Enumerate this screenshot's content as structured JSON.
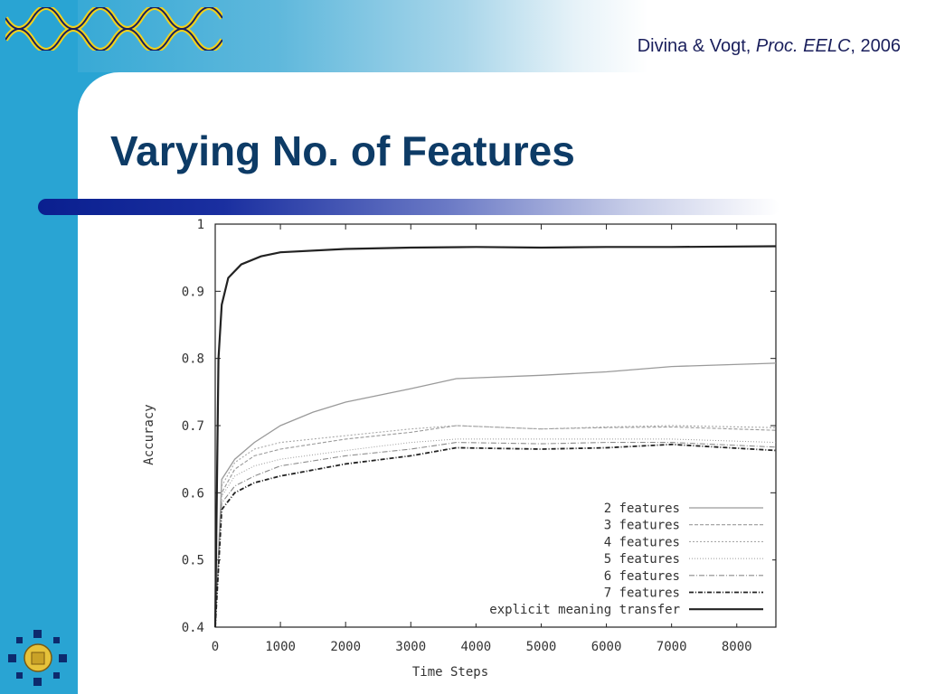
{
  "header": {
    "citation_authors": "Divina & Vogt, ",
    "citation_venue": "Proc. EELC",
    "citation_year": ", 2006"
  },
  "slide": {
    "title": "Varying No. of Features"
  },
  "colors": {
    "accent_blue": "#29a4d3",
    "title_navy": "#0d3b66",
    "rule_blue": "#0a1f8f"
  },
  "chart_data": {
    "type": "line",
    "xlabel": "Time Steps",
    "ylabel": "Accuracy",
    "xlim": [
      0,
      8600
    ],
    "ylim": [
      0.4,
      1.0
    ],
    "xticks": [
      0,
      1000,
      2000,
      3000,
      4000,
      5000,
      6000,
      7000,
      8000
    ],
    "yticks": [
      0.4,
      0.5,
      0.6,
      0.7,
      0.8,
      0.9,
      1
    ],
    "legend_position": "bottom-right",
    "series": [
      {
        "name": "2 features",
        "style": "solid-light",
        "points": [
          [
            0,
            0.4
          ],
          [
            100,
            0.62
          ],
          [
            300,
            0.65
          ],
          [
            600,
            0.675
          ],
          [
            1000,
            0.7
          ],
          [
            1500,
            0.72
          ],
          [
            2000,
            0.735
          ],
          [
            3000,
            0.755
          ],
          [
            3700,
            0.77
          ],
          [
            5000,
            0.775
          ],
          [
            6000,
            0.78
          ],
          [
            7000,
            0.788
          ],
          [
            8600,
            0.793
          ]
        ]
      },
      {
        "name": "3 features",
        "style": "dashed",
        "points": [
          [
            0,
            0.4
          ],
          [
            100,
            0.6
          ],
          [
            300,
            0.635
          ],
          [
            600,
            0.655
          ],
          [
            1000,
            0.665
          ],
          [
            2000,
            0.68
          ],
          [
            3000,
            0.69
          ],
          [
            3700,
            0.7
          ],
          [
            5000,
            0.695
          ],
          [
            6000,
            0.697
          ],
          [
            7000,
            0.698
          ],
          [
            8600,
            0.693
          ]
        ]
      },
      {
        "name": "4 features",
        "style": "dotted",
        "points": [
          [
            0,
            0.4
          ],
          [
            100,
            0.61
          ],
          [
            300,
            0.645
          ],
          [
            600,
            0.665
          ],
          [
            1000,
            0.675
          ],
          [
            2000,
            0.685
          ],
          [
            3000,
            0.695
          ],
          [
            3700,
            0.7
          ],
          [
            5000,
            0.695
          ],
          [
            6000,
            0.698
          ],
          [
            7000,
            0.7
          ],
          [
            8600,
            0.697
          ]
        ]
      },
      {
        "name": "5 features",
        "style": "dotted-fine",
        "points": [
          [
            0,
            0.4
          ],
          [
            100,
            0.595
          ],
          [
            300,
            0.625
          ],
          [
            600,
            0.64
          ],
          [
            1000,
            0.65
          ],
          [
            2000,
            0.663
          ],
          [
            3000,
            0.675
          ],
          [
            3700,
            0.68
          ],
          [
            5000,
            0.68
          ],
          [
            6000,
            0.68
          ],
          [
            7000,
            0.68
          ],
          [
            8600,
            0.675
          ]
        ]
      },
      {
        "name": "6 features",
        "style": "dash-dot",
        "points": [
          [
            0,
            0.4
          ],
          [
            100,
            0.585
          ],
          [
            300,
            0.61
          ],
          [
            600,
            0.625
          ],
          [
            1000,
            0.64
          ],
          [
            2000,
            0.655
          ],
          [
            3000,
            0.665
          ],
          [
            3700,
            0.675
          ],
          [
            5000,
            0.673
          ],
          [
            6000,
            0.675
          ],
          [
            7000,
            0.675
          ],
          [
            8600,
            0.668
          ]
        ]
      },
      {
        "name": "7 features",
        "style": "dash-dot-bold",
        "points": [
          [
            0,
            0.4
          ],
          [
            100,
            0.575
          ],
          [
            300,
            0.6
          ],
          [
            600,
            0.615
          ],
          [
            1000,
            0.625
          ],
          [
            2000,
            0.643
          ],
          [
            3000,
            0.655
          ],
          [
            3700,
            0.667
          ],
          [
            5000,
            0.665
          ],
          [
            6000,
            0.667
          ],
          [
            7000,
            0.672
          ],
          [
            8600,
            0.663
          ]
        ]
      },
      {
        "name": "explicit meaning transfer",
        "style": "solid-bold",
        "points": [
          [
            0,
            0.4
          ],
          [
            50,
            0.8
          ],
          [
            100,
            0.88
          ],
          [
            200,
            0.92
          ],
          [
            400,
            0.94
          ],
          [
            700,
            0.952
          ],
          [
            1000,
            0.958
          ],
          [
            2000,
            0.963
          ],
          [
            3000,
            0.965
          ],
          [
            4000,
            0.966
          ],
          [
            5000,
            0.965
          ],
          [
            6000,
            0.966
          ],
          [
            7000,
            0.966
          ],
          [
            8600,
            0.967
          ]
        ]
      }
    ]
  }
}
